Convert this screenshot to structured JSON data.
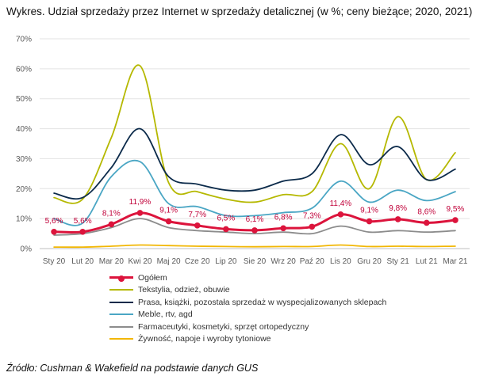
{
  "title": "Wykres. Udział sprzedaży przez Internet w sprzedaży detalicznej (w %; ceny bieżące; 2020, 2021)",
  "source": "Źródło: Cushman & Wakefield na podstawie danych GUS",
  "chart_data": {
    "type": "line",
    "categories": [
      "Sty 20",
      "Lut 20",
      "Mar 20",
      "Kwi 20",
      "Maj 20",
      "Cze 20",
      "Lip 20",
      "Sie 20",
      "Wrz 20",
      "Paź 20",
      "Lis 20",
      "Gru 20",
      "Sty 21",
      "Lut 21",
      "Mar 21"
    ],
    "ylim": [
      0,
      70
    ],
    "yticks": [
      0,
      10,
      20,
      30,
      40,
      50,
      60,
      70
    ],
    "ytick_labels": [
      "0%",
      "10%",
      "20%",
      "30%",
      "40%",
      "50%",
      "60%",
      "70%"
    ],
    "grid": true,
    "legend_position": "bottom",
    "series": [
      {
        "name": "Ogółem",
        "color": "#dc143c",
        "values": [
          5.6,
          5.6,
          8.1,
          11.9,
          9.1,
          7.7,
          6.5,
          6.1,
          6.8,
          7.3,
          11.4,
          9.1,
          9.8,
          8.6,
          9.5
        ],
        "data_labels": [
          "5,6%",
          "5,6%",
          "8,1%",
          "11,9%",
          "9,1%",
          "7,7%",
          "6,5%",
          "6,1%",
          "6,8%",
          "7,3%",
          "11,4%",
          "9,1%",
          "9,8%",
          "8,6%",
          "9,5%"
        ]
      },
      {
        "name": "Tekstylia, odzież, obuwie",
        "color": "#b5b800",
        "values": [
          17,
          16.5,
          37,
          61,
          22,
          19,
          16.5,
          15.5,
          18,
          19,
          35,
          20,
          44,
          23,
          32
        ]
      },
      {
        "name": "Prasa, książki, pozostała sprzedaż w wyspecjalizowanych sklepach",
        "color": "#0b2a4a",
        "values": [
          18.5,
          17,
          27,
          40,
          24,
          21.5,
          19.5,
          19.5,
          22.5,
          25,
          38,
          28,
          34,
          23,
          26.5
        ]
      },
      {
        "name": "Meble, rtv, agd",
        "color": "#4aa6c4",
        "values": [
          10,
          8.5,
          24,
          29,
          15,
          14,
          11,
          11,
          12,
          13.5,
          22.5,
          15.5,
          19.5,
          16,
          19
        ]
      },
      {
        "name": "Farmaceutyki, kosmetyki, sprzęt ortopedyczny",
        "color": "#8c8c8c",
        "values": [
          4.5,
          5,
          7,
          10,
          7,
          6,
          5.5,
          5,
          5.5,
          5,
          7.5,
          5.5,
          6,
          5.5,
          6
        ]
      },
      {
        "name": "Żywność, napoje i wyroby tytoniowe",
        "color": "#f2b705",
        "values": [
          0.5,
          0.5,
          0.8,
          1.2,
          1,
          0.8,
          0.7,
          0.6,
          0.7,
          0.7,
          1.2,
          0.7,
          0.8,
          0.7,
          0.8
        ]
      }
    ]
  }
}
